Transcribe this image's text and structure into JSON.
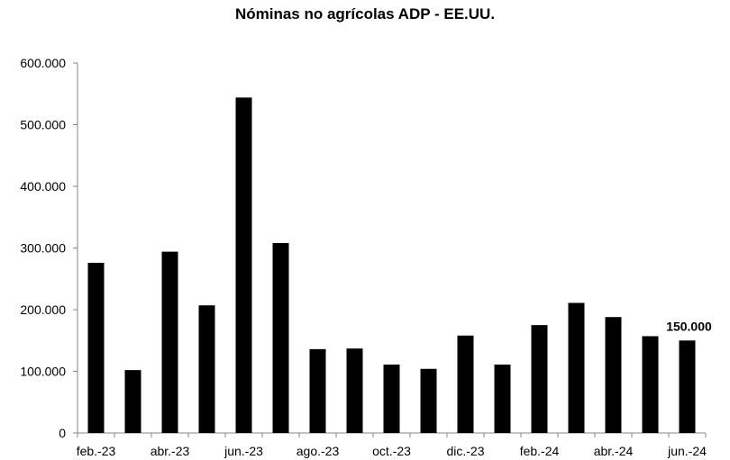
{
  "chart_data": {
    "type": "bar",
    "title": "Nóminas no agrícolas ADP - EE.UU.",
    "xlabel": "",
    "ylabel": "",
    "ylim": [
      0,
      600000
    ],
    "y_ticks": [
      0,
      100000,
      200000,
      300000,
      400000,
      500000,
      600000
    ],
    "y_tick_labels": [
      "0",
      "100.000",
      "200.000",
      "300.000",
      "400.000",
      "500.000",
      "600.000"
    ],
    "categories": [
      "feb.-23",
      "mar.-23",
      "abr.-23",
      "may.-23",
      "jun.-23",
      "jul.-23",
      "ago.-23",
      "sep.-23",
      "oct.-23",
      "nov.-23",
      "dic.-23",
      "ene.-24",
      "feb.-24",
      "mar.-24",
      "abr.-24",
      "may.-24",
      "jun.-24"
    ],
    "x_tick_labels": [
      "feb.-23",
      "",
      "abr.-23",
      "",
      "jun.-23",
      "",
      "ago.-23",
      "",
      "oct.-23",
      "",
      "dic.-23",
      "",
      "feb.-24",
      "",
      "abr.-24",
      "",
      "jun.-24"
    ],
    "values": [
      276000,
      102000,
      294000,
      207000,
      544000,
      308000,
      136000,
      137000,
      111000,
      104000,
      158000,
      111000,
      175000,
      211000,
      188000,
      157000,
      150000
    ],
    "bar_color": "#000000",
    "grid": false,
    "annotations": [
      {
        "index": 16,
        "text": "150.000"
      }
    ]
  }
}
